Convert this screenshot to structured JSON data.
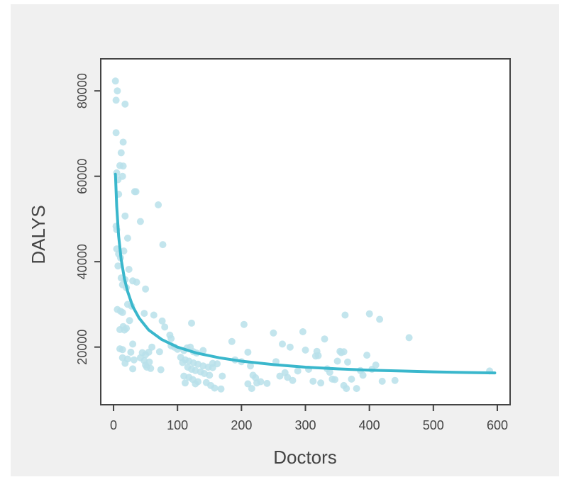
{
  "chart_data": {
    "type": "scatter",
    "xlabel": "Doctors",
    "ylabel": "DALYS",
    "xlim": [
      -20,
      620
    ],
    "ylim": [
      6500,
      87500
    ],
    "xticks": [
      0,
      100,
      200,
      300,
      400,
      500,
      600
    ],
    "yticks": [
      20000,
      40000,
      60000,
      80000
    ],
    "xtick_labels": [
      "0",
      "100",
      "200",
      "300",
      "400",
      "500",
      "600"
    ],
    "ytick_labels": [
      "20000",
      "40000",
      "60000",
      "80000"
    ],
    "grid": false,
    "colors": {
      "points": "#b9e0ea",
      "fit": "#3ab7cc",
      "axis": "#444444",
      "plot_bg": "#ffffff",
      "frame_bg": "#f0f0f0"
    },
    "points": [
      [
        3,
        82300
      ],
      [
        6,
        80000
      ],
      [
        4,
        77800
      ],
      [
        18,
        76900
      ],
      [
        4,
        70200
      ],
      [
        15,
        68000
      ],
      [
        12,
        65500
      ],
      [
        10,
        62500
      ],
      [
        15,
        62400
      ],
      [
        14,
        60000
      ],
      [
        5,
        60800
      ],
      [
        7,
        59200
      ],
      [
        33,
        56400
      ],
      [
        35,
        56400
      ],
      [
        8,
        55800
      ],
      [
        70,
        53300
      ],
      [
        18,
        50700
      ],
      [
        42,
        49400
      ],
      [
        4,
        48300
      ],
      [
        5,
        47500
      ],
      [
        22,
        45500
      ],
      [
        77,
        44000
      ],
      [
        5,
        43000
      ],
      [
        8,
        41800
      ],
      [
        16,
        42500
      ],
      [
        11,
        40900
      ],
      [
        7,
        39000
      ],
      [
        24,
        38200
      ],
      [
        12,
        36200
      ],
      [
        18,
        35800
      ],
      [
        30,
        35500
      ],
      [
        36,
        35200
      ],
      [
        14,
        34600
      ],
      [
        20,
        33900
      ],
      [
        50,
        33600
      ],
      [
        22,
        30000
      ],
      [
        28,
        29600
      ],
      [
        6,
        28800
      ],
      [
        11,
        28400
      ],
      [
        14,
        28100
      ],
      [
        48,
        27900
      ],
      [
        63,
        27500
      ],
      [
        76,
        26100
      ],
      [
        25,
        26200
      ],
      [
        15,
        24800
      ],
      [
        20,
        24400
      ],
      [
        10,
        24100
      ],
      [
        17,
        24000
      ],
      [
        88,
        22800
      ],
      [
        90,
        22000
      ],
      [
        30,
        20700
      ],
      [
        60,
        20000
      ],
      [
        90,
        20300
      ],
      [
        10,
        19600
      ],
      [
        14,
        19400
      ],
      [
        27,
        18800
      ],
      [
        45,
        18700
      ],
      [
        55,
        18800
      ],
      [
        72,
        18900
      ],
      [
        50,
        18200
      ],
      [
        42,
        17500
      ],
      [
        14,
        17500
      ],
      [
        22,
        17200
      ],
      [
        32,
        17000
      ],
      [
        48,
        16800
      ],
      [
        56,
        16500
      ],
      [
        18,
        16200
      ],
      [
        50,
        15800
      ],
      [
        52,
        15300
      ],
      [
        58,
        15000
      ],
      [
        30,
        14900
      ],
      [
        74,
        14700
      ],
      [
        80,
        24700
      ],
      [
        95,
        20000
      ],
      [
        100,
        19500
      ],
      [
        110,
        19200
      ],
      [
        115,
        19800
      ],
      [
        120,
        20000
      ],
      [
        125,
        18900
      ],
      [
        130,
        18600
      ],
      [
        140,
        19200
      ],
      [
        105,
        17600
      ],
      [
        112,
        17000
      ],
      [
        118,
        16700
      ],
      [
        125,
        16300
      ],
      [
        132,
        16000
      ],
      [
        140,
        15600
      ],
      [
        148,
        15300
      ],
      [
        155,
        15200
      ],
      [
        108,
        16400
      ],
      [
        116,
        15300
      ],
      [
        122,
        14800
      ],
      [
        128,
        14500
      ],
      [
        136,
        14200
      ],
      [
        142,
        13800
      ],
      [
        150,
        13400
      ],
      [
        110,
        13200
      ],
      [
        118,
        12900
      ],
      [
        124,
        12400
      ],
      [
        132,
        11900
      ],
      [
        112,
        11600
      ],
      [
        128,
        11400
      ],
      [
        145,
        11700
      ],
      [
        152,
        11000
      ],
      [
        168,
        10200
      ],
      [
        158,
        10400
      ],
      [
        122,
        25600
      ],
      [
        155,
        16200
      ],
      [
        162,
        16100
      ],
      [
        170,
        13200
      ],
      [
        185,
        21300
      ],
      [
        190,
        17000
      ],
      [
        200,
        16600
      ],
      [
        204,
        25300
      ],
      [
        210,
        18800
      ],
      [
        214,
        15600
      ],
      [
        218,
        13400
      ],
      [
        222,
        12800
      ],
      [
        224,
        11600
      ],
      [
        210,
        11400
      ],
      [
        216,
        10300
      ],
      [
        230,
        11900
      ],
      [
        240,
        11500
      ],
      [
        250,
        23300
      ],
      [
        254,
        16600
      ],
      [
        260,
        13200
      ],
      [
        264,
        20700
      ],
      [
        268,
        14000
      ],
      [
        272,
        12900
      ],
      [
        276,
        20000
      ],
      [
        280,
        12200
      ],
      [
        288,
        14400
      ],
      [
        296,
        23600
      ],
      [
        300,
        19300
      ],
      [
        305,
        14800
      ],
      [
        312,
        12000
      ],
      [
        316,
        17900
      ],
      [
        318,
        19000
      ],
      [
        320,
        18000
      ],
      [
        324,
        11600
      ],
      [
        330,
        21900
      ],
      [
        334,
        14900
      ],
      [
        338,
        14100
      ],
      [
        342,
        12500
      ],
      [
        346,
        12400
      ],
      [
        350,
        16700
      ],
      [
        354,
        19000
      ],
      [
        356,
        18700
      ],
      [
        360,
        18900
      ],
      [
        362,
        27500
      ],
      [
        360,
        11000
      ],
      [
        364,
        10300
      ],
      [
        366,
        16500
      ],
      [
        372,
        12500
      ],
      [
        380,
        10300
      ],
      [
        386,
        14500
      ],
      [
        390,
        13400
      ],
      [
        396,
        18100
      ],
      [
        400,
        27800
      ],
      [
        404,
        14800
      ],
      [
        410,
        15800
      ],
      [
        416,
        26500
      ],
      [
        420,
        12000
      ],
      [
        440,
        12200
      ],
      [
        462,
        22200
      ],
      [
        588,
        14400
      ]
    ],
    "fit": [
      [
        3,
        60500
      ],
      [
        5,
        53000
      ],
      [
        8,
        46000
      ],
      [
        12,
        40500
      ],
      [
        17,
        36000
      ],
      [
        22,
        33000
      ],
      [
        30,
        29500
      ],
      [
        40,
        26800
      ],
      [
        55,
        24000
      ],
      [
        75,
        21800
      ],
      [
        100,
        20000
      ],
      [
        130,
        18600
      ],
      [
        165,
        17500
      ],
      [
        200,
        16700
      ],
      [
        250,
        15900
      ],
      [
        300,
        15300
      ],
      [
        350,
        14900
      ],
      [
        400,
        14600
      ],
      [
        450,
        14400
      ],
      [
        500,
        14200
      ],
      [
        550,
        14050
      ],
      [
        596,
        13950
      ]
    ]
  }
}
